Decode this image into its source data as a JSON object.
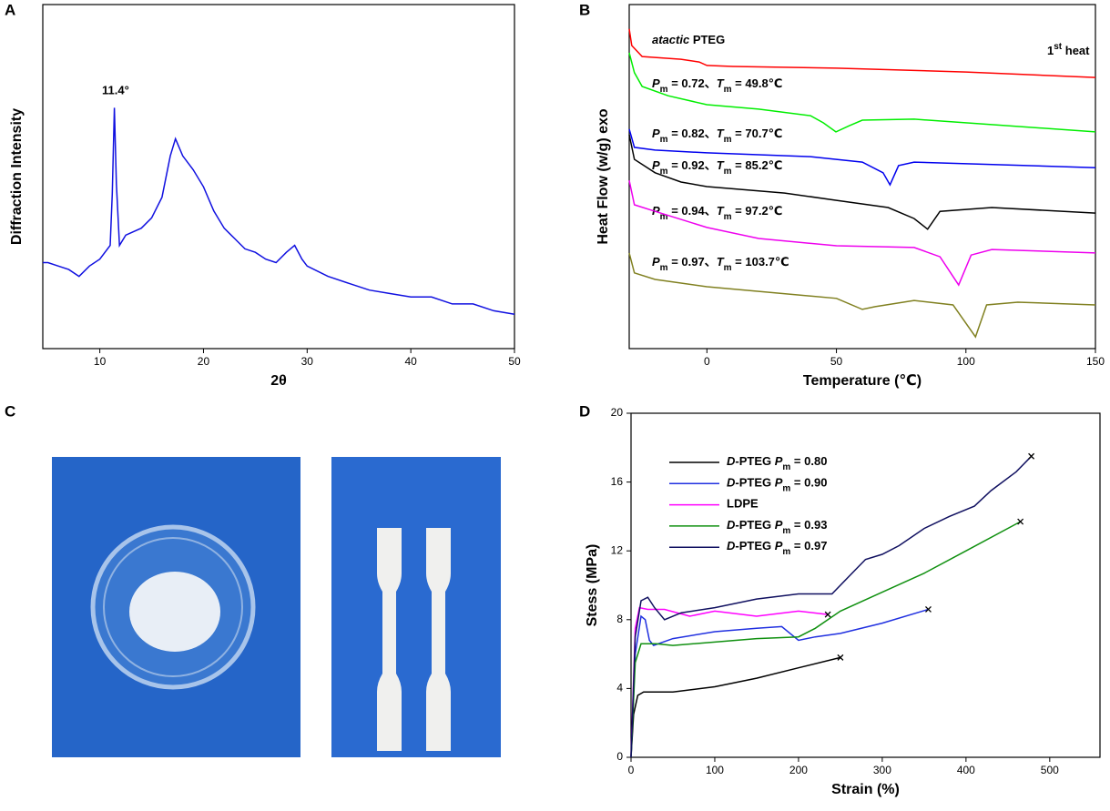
{
  "panels": [
    "A",
    "B",
    "C",
    "D"
  ],
  "chart_data": [
    {
      "type": "line",
      "xlabel": "2θ",
      "ylabel": "Diffraction Intensity",
      "annotations": [
        {
          "text": "11.4°"
        }
      ],
      "xlim": [
        4.5,
        50
      ],
      "xticks": [
        10,
        20,
        30,
        40,
        50
      ],
      "ylim": [
        0,
        100
      ],
      "series": [
        {
          "color": "#1010e0",
          "x": [
            4.5,
            5,
            6,
            7,
            8,
            9,
            10,
            11,
            11.2,
            11.4,
            11.6,
            11.9,
            12.5,
            14,
            15,
            16,
            16.8,
            17.3,
            18,
            19,
            20,
            21,
            22,
            23,
            24,
            25,
            26,
            27,
            28,
            28.8,
            29.5,
            30,
            32,
            34,
            36,
            38,
            40,
            42,
            44,
            46,
            48,
            50
          ],
          "values": [
            25,
            25,
            24,
            23,
            21,
            24,
            26,
            30,
            45,
            70,
            48,
            30,
            33,
            35,
            38,
            44,
            56,
            61,
            56,
            52,
            47,
            40,
            35,
            32,
            29,
            28,
            26,
            25,
            28,
            30,
            26,
            24,
            21,
            19,
            17,
            16,
            15,
            15,
            13,
            13,
            11,
            10
          ]
        }
      ]
    },
    {
      "type": "line",
      "xlabel": "Temperature (℃)",
      "ylabel": "Heat Flow (w/g) exo",
      "xlim": [
        -30,
        150
      ],
      "xticks": [
        0,
        50,
        100,
        150
      ],
      "ylim": [
        0,
        100
      ],
      "annotations": [
        {
          "segments": [
            {
              "text": "atactic",
              "style": "italic"
            },
            {
              "text": " PTEG"
            }
          ]
        },
        {
          "segments": [
            {
              "text": "1"
            },
            {
              "text": "st",
              "style": "sup"
            },
            {
              "text": " heat"
            }
          ]
        },
        {
          "segments": [
            {
              "text": "P",
              "style": "italic"
            },
            {
              "text": "m",
              "style": "sub"
            },
            {
              "text": " = 0.72、"
            },
            {
              "text": "T",
              "style": "italic"
            },
            {
              "text": "m",
              "style": "sub"
            },
            {
              "text": " = 49.8℃"
            }
          ]
        },
        {
          "segments": [
            {
              "text": "P",
              "style": "italic"
            },
            {
              "text": "m",
              "style": "sub"
            },
            {
              "text": " = 0.82、"
            },
            {
              "text": "T",
              "style": "italic"
            },
            {
              "text": "m",
              "style": "sub"
            },
            {
              "text": " = 70.7℃"
            }
          ]
        },
        {
          "segments": [
            {
              "text": "P",
              "style": "italic"
            },
            {
              "text": "m",
              "style": "sub"
            },
            {
              "text": " = 0.92、"
            },
            {
              "text": "T",
              "style": "italic"
            },
            {
              "text": "m",
              "style": "sub"
            },
            {
              "text": " = 85.2℃"
            }
          ]
        },
        {
          "segments": [
            {
              "text": "P",
              "style": "italic"
            },
            {
              "text": "m",
              "style": "sub"
            },
            {
              "text": " = 0.94、"
            },
            {
              "text": "T",
              "style": "italic"
            },
            {
              "text": "m",
              "style": "sub"
            },
            {
              "text": " = 97.2℃"
            }
          ]
        },
        {
          "segments": [
            {
              "text": "P",
              "style": "italic"
            },
            {
              "text": "m",
              "style": "sub"
            },
            {
              "text": " = 0.97、"
            },
            {
              "text": "T",
              "style": "italic"
            },
            {
              "text": "m",
              "style": "sub"
            },
            {
              "text": " = 103.7℃"
            }
          ]
        }
      ],
      "series": [
        {
          "color": "#ff0000",
          "x": [
            -30,
            -29,
            -25,
            -10,
            -3,
            0,
            10,
            50,
            100,
            150
          ],
          "values": [
            92.9,
            88.1,
            84.9,
            84.1,
            83.3,
            82.3,
            82.0,
            81.5,
            80.4,
            78.8
          ]
        },
        {
          "color": "#00ee00",
          "x": [
            -30,
            -28,
            -25,
            -15,
            0,
            20,
            40,
            45,
            49.8,
            55,
            60,
            80,
            150
          ],
          "values": [
            86,
            80.2,
            76.2,
            73.5,
            70.9,
            69.6,
            67.7,
            65.6,
            63.0,
            64.8,
            66.4,
            66.7,
            63.0
          ]
        },
        {
          "color": "#0000ee",
          "x": [
            -30,
            -28,
            -20,
            0,
            40,
            60,
            68,
            70.7,
            74,
            80,
            150
          ],
          "values": [
            63.8,
            58.5,
            57.7,
            56.9,
            55.8,
            54.2,
            51.1,
            47.6,
            53.2,
            54.2,
            52.6
          ]
        },
        {
          "color": "#000000",
          "x": [
            -30,
            -28,
            -20,
            -10,
            0,
            30,
            50,
            70,
            80,
            85.2,
            90,
            110,
            150
          ],
          "values": [
            62.2,
            55,
            51.1,
            48.4,
            47.1,
            45.2,
            43.1,
            41,
            37.8,
            34.7,
            39.9,
            41,
            39.4
          ]
        },
        {
          "color": "#ee00ee",
          "x": [
            -30,
            -28,
            -20,
            0,
            20,
            50,
            80,
            90,
            97.2,
            102,
            110,
            150
          ],
          "values": [
            48.9,
            41.8,
            39.9,
            35.2,
            32,
            29.9,
            29.4,
            26.7,
            18.5,
            27.2,
            28.8,
            27.8
          ]
        },
        {
          "color": "#808020",
          "x": [
            -30,
            -28,
            -20,
            0,
            50,
            60,
            65,
            80,
            95,
            103.7,
            108,
            120,
            150
          ],
          "values": [
            27.8,
            22,
            20.1,
            18,
            14.6,
            11.4,
            12.2,
            14,
            12.7,
            3.4,
            12.7,
            13.5,
            12.7
          ]
        }
      ]
    },
    {
      "type": "line",
      "xlabel": "Strain (%)",
      "ylabel": "Stess (MPa)",
      "xlim": [
        0,
        560
      ],
      "xticks": [
        0,
        100,
        200,
        300,
        400,
        500
      ],
      "ylim": [
        0,
        20
      ],
      "yticks": [
        0,
        4,
        8,
        12,
        16,
        20
      ],
      "end_marker": "x",
      "series": [
        {
          "name": [
            {
              "text": "D",
              "style": "italic"
            },
            {
              "text": "-PTEG "
            },
            {
              "text": "P",
              "style": "italic"
            },
            {
              "text": "m",
              "style": "sub"
            },
            {
              "text": " = 0.80"
            }
          ],
          "color": "#000000",
          "x": [
            0,
            3,
            8,
            15,
            50,
            100,
            150,
            200,
            250
          ],
          "values": [
            0,
            2.5,
            3.6,
            3.8,
            3.8,
            4.1,
            4.6,
            5.2,
            5.8
          ]
        },
        {
          "name": [
            {
              "text": "D",
              "style": "italic"
            },
            {
              "text": "-PTEG "
            },
            {
              "text": "P",
              "style": "italic"
            },
            {
              "text": "m",
              "style": "sub"
            },
            {
              "text": " = 0.90"
            }
          ],
          "color": "#2030e0",
          "x": [
            0,
            5,
            12,
            17,
            22,
            27,
            50,
            100,
            150,
            180,
            200,
            220,
            250,
            300,
            355
          ],
          "values": [
            0,
            6,
            8.2,
            8,
            6.8,
            6.5,
            6.9,
            7.3,
            7.5,
            7.6,
            6.8,
            7,
            7.2,
            7.8,
            8.6
          ]
        },
        {
          "name": [
            {
              "text": "LDPE"
            }
          ],
          "color": "#ff00ff",
          "x": [
            0,
            5,
            10,
            20,
            40,
            70,
            100,
            150,
            200,
            235
          ],
          "values": [
            0,
            7.5,
            8.7,
            8.6,
            8.6,
            8.2,
            8.5,
            8.2,
            8.5,
            8.3
          ]
        },
        {
          "name": [
            {
              "text": "D",
              "style": "italic"
            },
            {
              "text": "-PTEG "
            },
            {
              "text": "P",
              "style": "italic"
            },
            {
              "text": "m",
              "style": "sub"
            },
            {
              "text": " = 0.93"
            }
          ],
          "color": "#109010",
          "x": [
            0,
            5,
            12,
            30,
            50,
            100,
            150,
            200,
            220,
            250,
            300,
            350,
            400,
            465
          ],
          "values": [
            0,
            5.5,
            6.6,
            6.6,
            6.5,
            6.7,
            6.9,
            7.0,
            7.5,
            8.5,
            9.6,
            10.7,
            12,
            13.7
          ]
        },
        {
          "name": [
            {
              "text": "D",
              "style": "italic"
            },
            {
              "text": "-PTEG "
            },
            {
              "text": "P",
              "style": "italic"
            },
            {
              "text": "m",
              "style": "sub"
            },
            {
              "text": " = 0.97"
            }
          ],
          "color": "#101060",
          "x": [
            0,
            5,
            12,
            20,
            28,
            40,
            60,
            100,
            150,
            200,
            240,
            260,
            280,
            300,
            320,
            350,
            380,
            410,
            430,
            460,
            478
          ],
          "values": [
            0,
            7,
            9.1,
            9.3,
            8.7,
            8,
            8.4,
            8.7,
            9.2,
            9.5,
            9.5,
            10.5,
            11.5,
            11.8,
            12.3,
            13.3,
            14,
            14.6,
            15.5,
            16.6,
            17.5
          ]
        }
      ]
    }
  ]
}
